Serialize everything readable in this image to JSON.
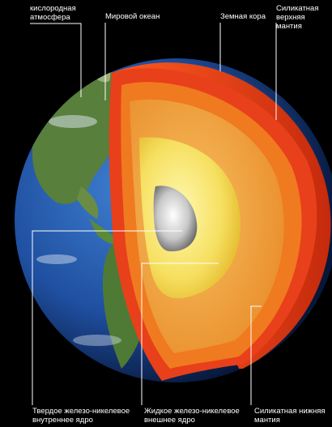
{
  "labels": {
    "atmosphere": "кислородная\nатмосфера",
    "ocean": "Мировой океан",
    "crust": "Земная кора",
    "upper_mantle": "Силикатная\nверхняя мантия",
    "inner_core": "Твердое железо-никелевое\nвнутреннее ядро",
    "outer_core": "Жидкое железо-никелевое\nвнешнее ядро",
    "lower_mantle": "Силикатная нижняя\nмантия"
  },
  "colors": {
    "background": "#000000",
    "ocean": "#1f4fa0",
    "land": "#4f7a35",
    "crust": "#e8401a",
    "upper_mantle": "#f07a20",
    "lower_mantle": "#f6a640",
    "outer_core": "#f6e060",
    "inner_core": "#c8c8c8",
    "leader_lines": "#ffffff"
  }
}
